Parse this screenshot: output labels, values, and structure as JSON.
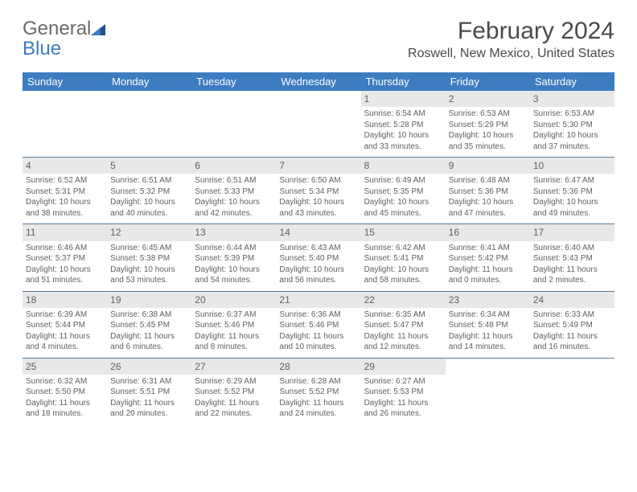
{
  "logo": {
    "text1": "General",
    "text2": "Blue"
  },
  "title": "February 2024",
  "location": "Roswell, New Mexico, United States",
  "colors": {
    "header_bg": "#3d7cc0",
    "header_fg": "#ffffff",
    "daynum_bg": "#e8e8e8",
    "text": "#606060",
    "rule": "#5a7a9a",
    "logo_gray": "#6a6a6a",
    "logo_blue": "#3d7cc0"
  },
  "weekdays": [
    "Sunday",
    "Monday",
    "Tuesday",
    "Wednesday",
    "Thursday",
    "Friday",
    "Saturday"
  ],
  "weeks": [
    [
      null,
      null,
      null,
      null,
      {
        "n": "1",
        "sr": "6:54 AM",
        "ss": "5:28 PM",
        "dl": "10 hours and 33 minutes."
      },
      {
        "n": "2",
        "sr": "6:53 AM",
        "ss": "5:29 PM",
        "dl": "10 hours and 35 minutes."
      },
      {
        "n": "3",
        "sr": "6:53 AM",
        "ss": "5:30 PM",
        "dl": "10 hours and 37 minutes."
      }
    ],
    [
      {
        "n": "4",
        "sr": "6:52 AM",
        "ss": "5:31 PM",
        "dl": "10 hours and 38 minutes."
      },
      {
        "n": "5",
        "sr": "6:51 AM",
        "ss": "5:32 PM",
        "dl": "10 hours and 40 minutes."
      },
      {
        "n": "6",
        "sr": "6:51 AM",
        "ss": "5:33 PM",
        "dl": "10 hours and 42 minutes."
      },
      {
        "n": "7",
        "sr": "6:50 AM",
        "ss": "5:34 PM",
        "dl": "10 hours and 43 minutes."
      },
      {
        "n": "8",
        "sr": "6:49 AM",
        "ss": "5:35 PM",
        "dl": "10 hours and 45 minutes."
      },
      {
        "n": "9",
        "sr": "6:48 AM",
        "ss": "5:36 PM",
        "dl": "10 hours and 47 minutes."
      },
      {
        "n": "10",
        "sr": "6:47 AM",
        "ss": "5:36 PM",
        "dl": "10 hours and 49 minutes."
      }
    ],
    [
      {
        "n": "11",
        "sr": "6:46 AM",
        "ss": "5:37 PM",
        "dl": "10 hours and 51 minutes."
      },
      {
        "n": "12",
        "sr": "6:45 AM",
        "ss": "5:38 PM",
        "dl": "10 hours and 53 minutes."
      },
      {
        "n": "13",
        "sr": "6:44 AM",
        "ss": "5:39 PM",
        "dl": "10 hours and 54 minutes."
      },
      {
        "n": "14",
        "sr": "6:43 AM",
        "ss": "5:40 PM",
        "dl": "10 hours and 56 minutes."
      },
      {
        "n": "15",
        "sr": "6:42 AM",
        "ss": "5:41 PM",
        "dl": "10 hours and 58 minutes."
      },
      {
        "n": "16",
        "sr": "6:41 AM",
        "ss": "5:42 PM",
        "dl": "11 hours and 0 minutes."
      },
      {
        "n": "17",
        "sr": "6:40 AM",
        "ss": "5:43 PM",
        "dl": "11 hours and 2 minutes."
      }
    ],
    [
      {
        "n": "18",
        "sr": "6:39 AM",
        "ss": "5:44 PM",
        "dl": "11 hours and 4 minutes."
      },
      {
        "n": "19",
        "sr": "6:38 AM",
        "ss": "5:45 PM",
        "dl": "11 hours and 6 minutes."
      },
      {
        "n": "20",
        "sr": "6:37 AM",
        "ss": "5:46 PM",
        "dl": "11 hours and 8 minutes."
      },
      {
        "n": "21",
        "sr": "6:36 AM",
        "ss": "5:46 PM",
        "dl": "11 hours and 10 minutes."
      },
      {
        "n": "22",
        "sr": "6:35 AM",
        "ss": "5:47 PM",
        "dl": "11 hours and 12 minutes."
      },
      {
        "n": "23",
        "sr": "6:34 AM",
        "ss": "5:48 PM",
        "dl": "11 hours and 14 minutes."
      },
      {
        "n": "24",
        "sr": "6:33 AM",
        "ss": "5:49 PM",
        "dl": "11 hours and 16 minutes."
      }
    ],
    [
      {
        "n": "25",
        "sr": "6:32 AM",
        "ss": "5:50 PM",
        "dl": "11 hours and 18 minutes."
      },
      {
        "n": "26",
        "sr": "6:31 AM",
        "ss": "5:51 PM",
        "dl": "11 hours and 20 minutes."
      },
      {
        "n": "27",
        "sr": "6:29 AM",
        "ss": "5:52 PM",
        "dl": "11 hours and 22 minutes."
      },
      {
        "n": "28",
        "sr": "6:28 AM",
        "ss": "5:52 PM",
        "dl": "11 hours and 24 minutes."
      },
      {
        "n": "29",
        "sr": "6:27 AM",
        "ss": "5:53 PM",
        "dl": "11 hours and 26 minutes."
      },
      null,
      null
    ]
  ],
  "labels": {
    "sunrise": "Sunrise: ",
    "sunset": "Sunset: ",
    "daylight": "Daylight: "
  }
}
